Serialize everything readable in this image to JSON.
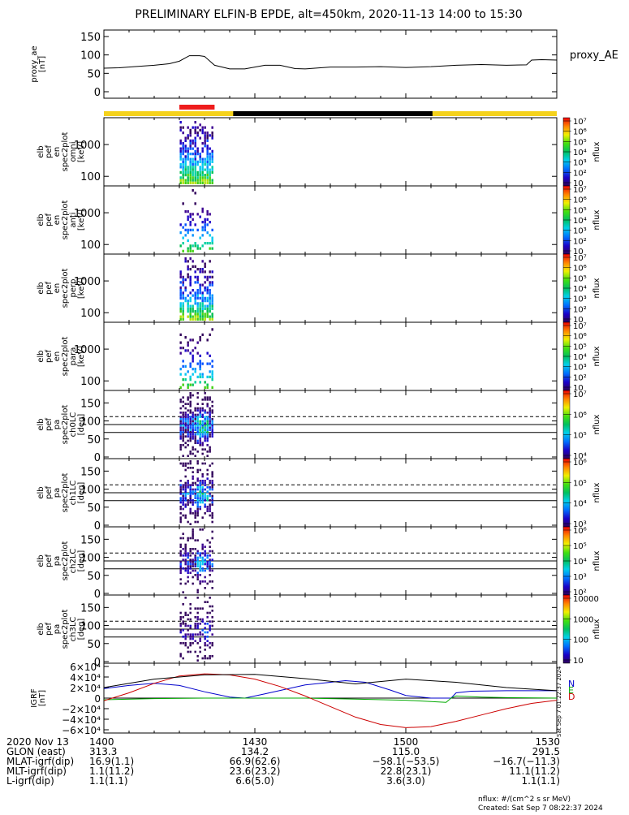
{
  "title": "PRELIMINARY ELFIN-B EPDE, alt=450km, 2020-11-13 14:00 to 15:30",
  "chart_data": [
    {
      "type": "line",
      "id": "proxy_ae",
      "ylabel_lines": [
        "proxy_ae",
        "[nT]"
      ],
      "legend": "proxy_AE",
      "ylim": [
        0,
        150
      ],
      "yticks": [
        "0",
        "50",
        "100",
        "150"
      ],
      "x_minutes": [
        0,
        3,
        6,
        8,
        10,
        13,
        15,
        17,
        19,
        20,
        22,
        25,
        28,
        32,
        35,
        38,
        40,
        45,
        50,
        55,
        60,
        65,
        70,
        75,
        80,
        84,
        85,
        87,
        90
      ],
      "values": [
        64,
        65,
        68,
        70,
        72,
        76,
        83,
        98,
        98,
        96,
        72,
        62,
        62,
        72,
        72,
        63,
        62,
        67,
        67,
        68,
        66,
        68,
        72,
        74,
        72,
        73,
        86,
        87,
        86
      ]
    },
    {
      "type": "heatmap",
      "id": "pef_en_omni",
      "ylabel_lines": [
        "elb",
        "pef",
        "en",
        "spec2plot",
        "omni",
        "[keV]"
      ],
      "yticks": [
        "100",
        "1000"
      ],
      "colorbar_label": "nflux",
      "colorbar_ticks": [
        "10",
        "10²",
        "10³",
        "10⁴",
        "10⁵",
        "10⁶",
        "10⁷"
      ]
    },
    {
      "type": "heatmap",
      "id": "pef_en_anti",
      "ylabel_lines": [
        "elb",
        "pef",
        "en",
        "spec2plot",
        "anti",
        "[keV]"
      ],
      "yticks": [
        "100",
        "1000"
      ],
      "colorbar_label": "nflux",
      "colorbar_ticks": [
        "10",
        "10²",
        "10³",
        "10⁴",
        "10⁵",
        "10⁶",
        "10⁷"
      ]
    },
    {
      "type": "heatmap",
      "id": "pef_en_perp",
      "ylabel_lines": [
        "elb",
        "pef",
        "en",
        "spec2plot",
        "perp",
        "[keV]"
      ],
      "yticks": [
        "100",
        "1000"
      ],
      "colorbar_label": "nflux",
      "colorbar_ticks": [
        "10",
        "10²",
        "10³",
        "10⁴",
        "10⁵",
        "10⁶",
        "10⁷"
      ]
    },
    {
      "type": "heatmap",
      "id": "pef_en_para",
      "ylabel_lines": [
        "elb",
        "pef",
        "en",
        "spec2plot",
        "para",
        "[keV]"
      ],
      "yticks": [
        "100",
        "1000"
      ],
      "colorbar_label": "nflux",
      "colorbar_ticks": [
        "10",
        "10²",
        "10³",
        "10⁴",
        "10⁵",
        "10⁶",
        "10⁷"
      ]
    },
    {
      "type": "heatmap",
      "id": "pef_pa_ch0LC",
      "ylabel_lines": [
        "elb",
        "pef",
        "pa",
        "spec2plot",
        "ch0LC",
        "[deg]"
      ],
      "yticks": [
        "0",
        "50",
        "100",
        "150"
      ],
      "colorbar_label": "nflux",
      "colorbar_ticks": [
        "10⁴",
        "10⁵",
        "10⁶",
        "10⁷"
      ]
    },
    {
      "type": "heatmap",
      "id": "pef_pa_ch1LC",
      "ylabel_lines": [
        "elb",
        "pef",
        "pa",
        "spec2plot",
        "ch1LC",
        "[deg]"
      ],
      "yticks": [
        "0",
        "50",
        "100",
        "150"
      ],
      "colorbar_label": "nflux",
      "colorbar_ticks": [
        "10³",
        "10⁴",
        "10⁵",
        "10⁶"
      ]
    },
    {
      "type": "heatmap",
      "id": "pef_pa_ch2LC",
      "ylabel_lines": [
        "elb",
        "pef",
        "pa",
        "spec2plot",
        "ch2LC",
        "[deg]"
      ],
      "yticks": [
        "0",
        "50",
        "100",
        "150"
      ],
      "colorbar_label": "nflux",
      "colorbar_ticks": [
        "10²",
        "10³",
        "10⁴",
        "10⁵",
        "10⁶"
      ]
    },
    {
      "type": "heatmap",
      "id": "pef_pa_ch3LC",
      "ylabel_lines": [
        "elb",
        "pef",
        "pa",
        "spec2plot",
        "ch3LC",
        "[deg]"
      ],
      "yticks": [
        "0",
        "50",
        "100",
        "150"
      ],
      "colorbar_label": "nflux",
      "colorbar_ticks": [
        "10",
        "100",
        "1000",
        "10000"
      ]
    },
    {
      "type": "line",
      "id": "igrf",
      "ylabel_lines": [
        "IGRF",
        "[nT]"
      ],
      "ylim": [
        -60000,
        60000
      ],
      "yticks": [
        "−6×10⁴",
        "−4×10⁴",
        "−2×10⁴",
        "0",
        "2×10⁴",
        "4×10⁴",
        "6×10⁴"
      ],
      "legend": [
        "N",
        "E",
        "D"
      ],
      "series": [
        {
          "name": "N",
          "color": "#0000cc",
          "x_minutes": [
            0,
            5,
            10,
            15,
            20,
            25,
            28,
            32,
            40,
            45,
            48,
            52,
            57,
            60,
            65,
            69,
            70,
            73,
            80,
            90
          ],
          "values": [
            18000,
            24000,
            28000,
            24000,
            12000,
            2000,
            0,
            8000,
            25000,
            30000,
            33000,
            30000,
            15000,
            5000,
            0,
            0,
            10000,
            13000,
            14000,
            14000
          ]
        },
        {
          "name": "E",
          "color": "#00aa00",
          "x_minutes": [
            0,
            10,
            20,
            30,
            40,
            50,
            60,
            68,
            69,
            70,
            75,
            80,
            90
          ],
          "values": [
            -3000,
            -1000,
            0,
            0,
            0,
            -2000,
            -4000,
            -8000,
            0,
            4000,
            2000,
            1000,
            0
          ]
        },
        {
          "name": "D",
          "color": "#cc0000",
          "x_minutes": [
            0,
            5,
            10,
            15,
            20,
            25,
            30,
            35,
            40,
            45,
            50,
            55,
            60,
            65,
            70,
            75,
            80,
            85,
            90
          ],
          "values": [
            -5000,
            10000,
            28000,
            42000,
            46000,
            44000,
            36000,
            22000,
            4000,
            -16000,
            -36000,
            -50000,
            -56000,
            -54000,
            -44000,
            -32000,
            -20000,
            -10000,
            -4000
          ]
        },
        {
          "name": "",
          "color": "#000000",
          "x_minutes": [
            0,
            10,
            20,
            30,
            40,
            50,
            60,
            70,
            80,
            90
          ],
          "values": [
            20000,
            36000,
            44000,
            45000,
            37000,
            27000,
            36000,
            30000,
            20000,
            14000
          ]
        }
      ]
    }
  ],
  "orbit_bar": {
    "colors": {
      "yellow": "#f5d21c",
      "black": "#000000",
      "red": "#ee1c1c"
    }
  },
  "right_annotation": "Sat Sep  7 01:22:37 2024",
  "x_axis": {
    "label_rows": [
      "2020 Nov 13",
      "GLON (east)",
      "MLAT-igrf(dip)",
      "MLT-igrf(dip)",
      "L-igrf(dip)"
    ],
    "columns": [
      {
        "time": "1400",
        "glon": "313.3",
        "mlat": "16.9(1.1)",
        "mlt": "1.1(11.2)",
        "l": "1.1(1.1)"
      },
      {
        "time": "1430",
        "glon": "134.2",
        "mlat": "66.9(62.6)",
        "mlt": "23.6(23.2)",
        "l": "6.6(5.0)"
      },
      {
        "time": "1500",
        "glon": "115.0",
        "mlat": "−58.1(−53.5)",
        "mlt": "22.8(23.1)",
        "l": "3.6(3.0)"
      },
      {
        "time": "1530",
        "glon": "291.5",
        "mlat": "−16.7(−11.3)",
        "mlt": "11.1(11.2)",
        "l": "1.1(1.1)"
      }
    ]
  },
  "footer": {
    "units": "nflux: #/(cm^2 s sr MeV)",
    "created": "Created: Sat Sep  7 08:22:37 2024"
  }
}
